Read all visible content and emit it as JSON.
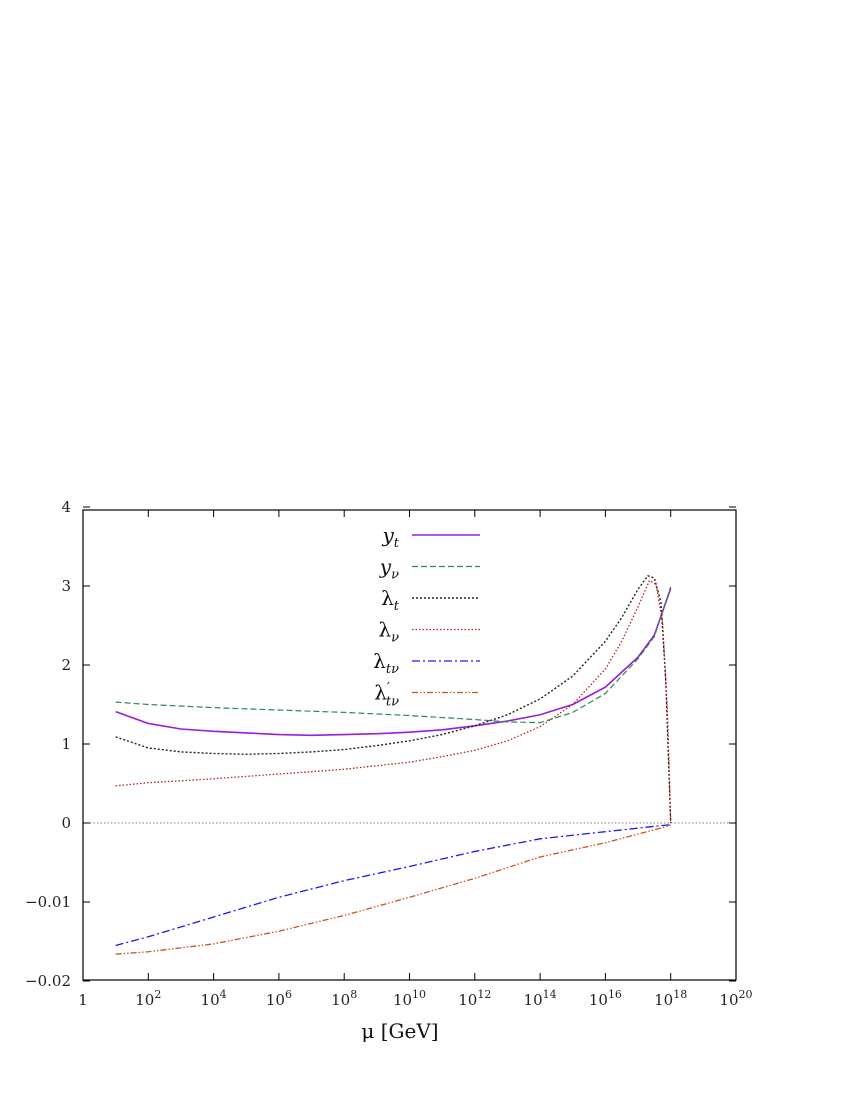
{
  "chart_data": {
    "type": "line",
    "title": "",
    "xlabel": "μ [GeV]",
    "ylabel": "",
    "x_scale": "log10",
    "xlim_exponent": [
      0,
      20
    ],
    "x_ticks": [
      {
        "exp": 0,
        "base": "1",
        "sup": ""
      },
      {
        "exp": 2,
        "base": "10",
        "sup": "2"
      },
      {
        "exp": 4,
        "base": "10",
        "sup": "4"
      },
      {
        "exp": 6,
        "base": "10",
        "sup": "6"
      },
      {
        "exp": 8,
        "base": "10",
        "sup": "8"
      },
      {
        "exp": 10,
        "base": "10",
        "sup": "10"
      },
      {
        "exp": 12,
        "base": "10",
        "sup": "12"
      },
      {
        "exp": 14,
        "base": "10",
        "sup": "14"
      },
      {
        "exp": 16,
        "base": "10",
        "sup": "16"
      },
      {
        "exp": 18,
        "base": "10",
        "sup": "18"
      },
      {
        "exp": 20,
        "base": "10",
        "sup": "20"
      }
    ],
    "y_axis_note": "Piecewise axis: upper part linear 0 to 4, lower part linear -0.02 to 0",
    "y_ticks": [
      {
        "value": 4,
        "label": "4"
      },
      {
        "value": 3,
        "label": "3"
      },
      {
        "value": 2,
        "label": "2"
      },
      {
        "value": 1,
        "label": "1"
      },
      {
        "value": 0,
        "label": "0"
      },
      {
        "value": -0.01,
        "label": "−0.01"
      },
      {
        "value": -0.02,
        "label": "−0.02"
      }
    ],
    "grid": false,
    "zero_line": true,
    "legend_position": "top-center",
    "series": [
      {
        "name": "y_t",
        "legend": {
          "base": "y",
          "sub": "t",
          "prime": false,
          "lambda": false
        },
        "color": "#9a1fd6",
        "dash": "",
        "width": 1.6,
        "points": [
          [
            1,
            1.41
          ],
          [
            2,
            1.26
          ],
          [
            3,
            1.19
          ],
          [
            4,
            1.16
          ],
          [
            5,
            1.14
          ],
          [
            6,
            1.12
          ],
          [
            7,
            1.11
          ],
          [
            8,
            1.12
          ],
          [
            9,
            1.13
          ],
          [
            10,
            1.15
          ],
          [
            11,
            1.18
          ],
          [
            12,
            1.23
          ],
          [
            13,
            1.29
          ],
          [
            14,
            1.37
          ],
          [
            15,
            1.5
          ],
          [
            16,
            1.72
          ],
          [
            17,
            2.1
          ],
          [
            17.5,
            2.38
          ],
          [
            18,
            2.97
          ]
        ]
      },
      {
        "name": "y_ν",
        "legend": {
          "base": "y",
          "sub": "ν",
          "prime": false,
          "lambda": false
        },
        "color": "#2b8a56",
        "dash": "6,3",
        "width": 1.2,
        "points": [
          [
            1,
            1.53
          ],
          [
            2,
            1.5
          ],
          [
            4,
            1.46
          ],
          [
            6,
            1.43
          ],
          [
            8,
            1.4
          ],
          [
            10,
            1.36
          ],
          [
            12,
            1.31
          ],
          [
            13,
            1.28
          ],
          [
            14,
            1.27
          ],
          [
            15,
            1.4
          ],
          [
            16,
            1.64
          ],
          [
            17,
            2.08
          ],
          [
            17.5,
            2.36
          ],
          [
            18,
            2.99
          ]
        ]
      },
      {
        "name": "λ_t",
        "legend": {
          "base": "λ",
          "sub": "t",
          "prime": false,
          "lambda": true
        },
        "color": "#222222",
        "dash": "2,2",
        "width": 1.4,
        "points": [
          [
            1,
            1.09
          ],
          [
            2,
            0.95
          ],
          [
            3,
            0.9
          ],
          [
            4,
            0.88
          ],
          [
            5,
            0.87
          ],
          [
            6,
            0.88
          ],
          [
            7,
            0.9
          ],
          [
            8,
            0.93
          ],
          [
            9,
            0.98
          ],
          [
            10,
            1.04
          ],
          [
            11,
            1.12
          ],
          [
            12,
            1.23
          ],
          [
            13,
            1.37
          ],
          [
            14,
            1.57
          ],
          [
            15,
            1.86
          ],
          [
            16,
            2.3
          ],
          [
            16.5,
            2.6
          ],
          [
            17,
            2.96
          ],
          [
            17.3,
            3.13
          ],
          [
            17.5,
            3.1
          ],
          [
            17.7,
            2.8
          ],
          [
            17.85,
            1.8
          ],
          [
            18,
            0.0
          ]
        ]
      },
      {
        "name": "λ_ν",
        "legend": {
          "base": "λ",
          "sub": "ν",
          "prime": false,
          "lambda": true
        },
        "color": "#b82020",
        "dash": "1.5,2",
        "width": 1.3,
        "points": [
          [
            1,
            0.47
          ],
          [
            2,
            0.51
          ],
          [
            4,
            0.56
          ],
          [
            6,
            0.62
          ],
          [
            8,
            0.68
          ],
          [
            10,
            0.77
          ],
          [
            11,
            0.84
          ],
          [
            12,
            0.92
          ],
          [
            13,
            1.04
          ],
          [
            14,
            1.22
          ],
          [
            15,
            1.5
          ],
          [
            16,
            1.95
          ],
          [
            16.5,
            2.3
          ],
          [
            17,
            2.74
          ],
          [
            17.35,
            3.07
          ],
          [
            17.55,
            3.02
          ],
          [
            17.75,
            2.55
          ],
          [
            17.9,
            1.4
          ],
          [
            18,
            0.0
          ]
        ]
      },
      {
        "name": "λ_tν",
        "legend": {
          "base": "λ",
          "sub": "tν",
          "prime": false,
          "lambda": true
        },
        "color": "#1a1aee",
        "dash": "8,3,2,3",
        "width": 1.3,
        "points": [
          [
            1,
            -0.0155
          ],
          [
            2,
            -0.0144
          ],
          [
            4,
            -0.0119
          ],
          [
            6,
            -0.0094
          ],
          [
            8,
            -0.0073
          ],
          [
            10,
            -0.0055
          ],
          [
            12,
            -0.0036
          ],
          [
            14,
            -0.002
          ],
          [
            16,
            -0.0011
          ],
          [
            18,
            -0.0002
          ]
        ]
      },
      {
        "name": "λ'_tν",
        "legend": {
          "base": "λ",
          "sub": "tν",
          "prime": true,
          "lambda": true
        },
        "color": "#c8551f",
        "dash": "6,2,1.5,2,1.5,2",
        "width": 1.3,
        "points": [
          [
            1,
            -0.0166
          ],
          [
            2,
            -0.0163
          ],
          [
            4,
            -0.0153
          ],
          [
            6,
            -0.0137
          ],
          [
            8,
            -0.0117
          ],
          [
            10,
            -0.0094
          ],
          [
            12,
            -0.007
          ],
          [
            14,
            -0.0043
          ],
          [
            16,
            -0.0025
          ],
          [
            18,
            -0.0003
          ]
        ]
      }
    ]
  }
}
